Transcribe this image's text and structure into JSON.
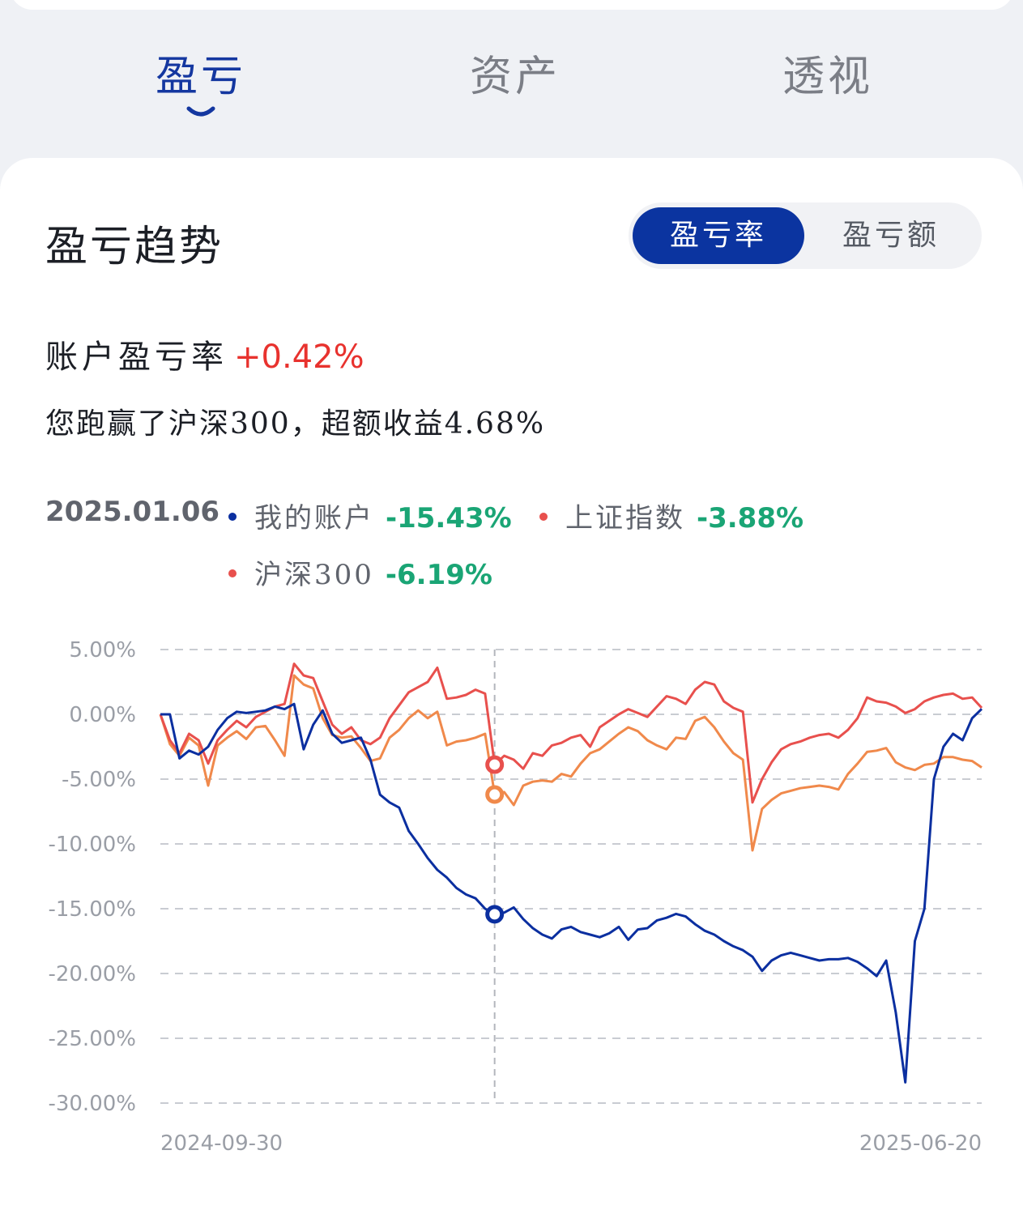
{
  "tabs": [
    {
      "label": "盈亏",
      "active": true
    },
    {
      "label": "资产",
      "active": false
    },
    {
      "label": "透视",
      "active": false
    }
  ],
  "section_title": "盈亏趋势",
  "toggle": {
    "rate": "盈亏率",
    "amount": "盈亏额"
  },
  "account_rate": {
    "label": "账户盈亏率",
    "value": "+0.42%"
  },
  "excess_text": "您跑赢了沪深300，超额收益4.68%",
  "legend": {
    "date": "2025.01.06",
    "items": [
      {
        "name": "我的账户",
        "value": "-15.43%",
        "color": "#0b2fa0"
      },
      {
        "name": "上证指数",
        "value": "-3.88%",
        "color": "#e8504d"
      },
      {
        "name": "沪深300",
        "value": "-6.19%",
        "color": "#f0894b"
      }
    ]
  },
  "colors": {
    "account": "#0b2fa0",
    "shanghai": "#e8504d",
    "hs300": "#f0894b",
    "positive": "#e8322e",
    "negative": "#1aa575"
  },
  "chart_data": {
    "type": "line",
    "x_start_label": "2024-09-30",
    "x_end_label": "2025-06-20",
    "y_ticks": [
      "5.00%",
      "0.00%",
      "-5.00%",
      "-10.00%",
      "-15.00%",
      "-20.00%",
      "-25.00%",
      "-30.00%"
    ],
    "ylim": [
      -30,
      5
    ],
    "crosshair_date": "2025.01.06",
    "grid": true,
    "series": [
      {
        "name": "我的账户",
        "values": [
          0,
          0,
          -3.4,
          -2.8,
          -3.1,
          -2.5,
          -1.2,
          -0.3,
          0.2,
          0.1,
          0.2,
          0.3,
          0.6,
          0.4,
          0.8,
          -2.7,
          -0.8,
          0.3,
          -1.5,
          -2.2,
          -2.0,
          -1.8,
          -3.5,
          -6.2,
          -6.8,
          -7.2,
          -9.0,
          -10.0,
          -11.1,
          -12.0,
          -12.6,
          -13.4,
          -13.9,
          -14.2,
          -15.0,
          -15.43,
          -15.3,
          -14.9,
          -15.8,
          -16.5,
          -17.0,
          -17.3,
          -16.6,
          -16.4,
          -16.8,
          -17.0,
          -17.2,
          -16.9,
          -16.4,
          -17.4,
          -16.6,
          -16.5,
          -15.9,
          -15.7,
          -15.4,
          -15.6,
          -16.2,
          -16.7,
          -17.0,
          -17.5,
          -17.9,
          -18.2,
          -18.7,
          -19.8,
          -19.0,
          -18.6,
          -18.4,
          -18.6,
          -18.8,
          -19.0,
          -18.9,
          -18.9,
          -18.8,
          -19.1,
          -19.6,
          -20.2,
          -19.0,
          -23.0,
          -28.4,
          -17.5,
          -15.0,
          -5.0,
          -2.5,
          -1.5,
          -2.0,
          -0.3,
          0.42
        ]
      },
      {
        "name": "上证指数",
        "values": [
          0,
          -2.0,
          -3.0,
          -1.5,
          -2.0,
          -3.8,
          -2.0,
          -1.2,
          -0.5,
          -1.0,
          -0.2,
          0.2,
          0.6,
          0.8,
          3.9,
          3.0,
          2.8,
          1.0,
          -0.8,
          -1.5,
          -1.0,
          -2.0,
          -2.3,
          -1.8,
          -0.3,
          0.7,
          1.7,
          2.1,
          2.5,
          3.6,
          1.2,
          1.3,
          1.5,
          1.9,
          1.6,
          -3.88,
          -3.2,
          -3.5,
          -4.2,
          -3.0,
          -3.2,
          -2.4,
          -2.2,
          -1.8,
          -1.6,
          -2.5,
          -1.0,
          -0.5,
          0,
          0.4,
          0.1,
          -0.2,
          0.6,
          1.4,
          1.2,
          0.8,
          1.9,
          2.5,
          2.3,
          1.0,
          0.5,
          0.2,
          -6.8,
          -5.0,
          -3.7,
          -2.7,
          -2.3,
          -2.1,
          -1.8,
          -1.6,
          -1.5,
          -1.8,
          -1.2,
          -0.3,
          1.3,
          1.0,
          0.9,
          0.6,
          0.1,
          0.4,
          1.0,
          1.3,
          1.5,
          1.6,
          1.2,
          1.3,
          0.5
        ]
      },
      {
        "name": "沪深300",
        "values": [
          0,
          -2.3,
          -3.2,
          -1.8,
          -2.4,
          -5.5,
          -2.4,
          -1.8,
          -1.3,
          -1.9,
          -1.0,
          -0.9,
          -2.0,
          -3.2,
          3.0,
          2.3,
          2.0,
          -0.3,
          -1.6,
          -1.8,
          -1.7,
          -2.6,
          -3.6,
          -3.4,
          -1.8,
          -1.2,
          -0.3,
          0.3,
          -0.3,
          0.2,
          -2.4,
          -2.1,
          -2.0,
          -1.8,
          -1.5,
          -6.19,
          -6.0,
          -7.0,
          -5.5,
          -5.2,
          -5.1,
          -5.2,
          -4.6,
          -4.8,
          -3.8,
          -3.0,
          -2.7,
          -2.1,
          -1.5,
          -1.0,
          -1.3,
          -2.0,
          -2.4,
          -2.7,
          -1.8,
          -1.9,
          -0.5,
          -0.2,
          -1.0,
          -2.1,
          -3.0,
          -3.5,
          -10.5,
          -7.3,
          -6.6,
          -6.1,
          -5.9,
          -5.7,
          -5.6,
          -5.5,
          -5.6,
          -5.8,
          -4.6,
          -3.8,
          -2.9,
          -2.8,
          -2.6,
          -3.7,
          -4.1,
          -4.3,
          -3.9,
          -3.8,
          -3.3,
          -3.3,
          -3.5,
          -3.6,
          -4.1
        ]
      }
    ]
  }
}
